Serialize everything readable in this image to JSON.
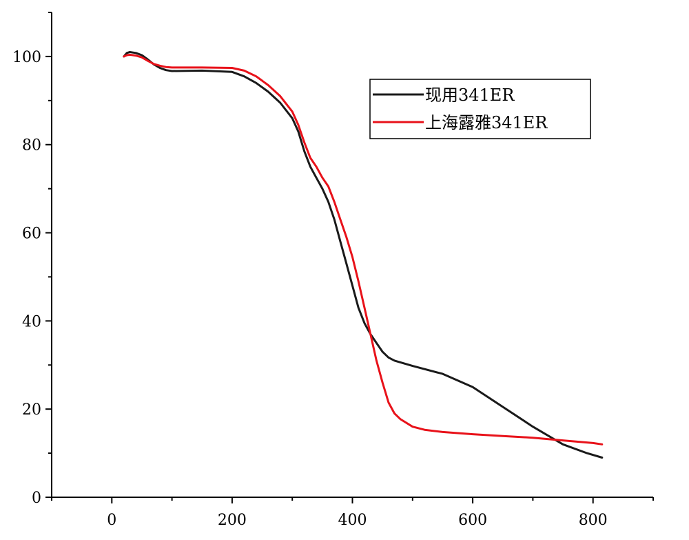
{
  "chart_data": {
    "type": "line",
    "title": "",
    "xlabel": "",
    "ylabel": "",
    "xlim": [
      -100,
      900
    ],
    "ylim": [
      0,
      110
    ],
    "x_ticks": [
      0,
      200,
      400,
      600,
      800
    ],
    "x_tick_labels": [
      "0",
      "200",
      "400",
      "600",
      "800"
    ],
    "y_ticks": [
      0,
      20,
      40,
      60,
      80,
      100
    ],
    "y_tick_labels": [
      "0",
      "20",
      "40",
      "60",
      "80",
      "100"
    ],
    "grid": false,
    "legend_position": "top-right",
    "series": [
      {
        "name": "现用341ER",
        "color": "#1a1a1a",
        "points": [
          [
            20,
            100
          ],
          [
            25,
            100.8
          ],
          [
            30,
            101
          ],
          [
            40,
            100.8
          ],
          [
            50,
            100.3
          ],
          [
            60,
            99.3
          ],
          [
            70,
            98.2
          ],
          [
            80,
            97.4
          ],
          [
            90,
            96.9
          ],
          [
            100,
            96.7
          ],
          [
            150,
            96.8
          ],
          [
            200,
            96.5
          ],
          [
            220,
            95.5
          ],
          [
            240,
            94
          ],
          [
            260,
            92
          ],
          [
            280,
            89.5
          ],
          [
            300,
            86
          ],
          [
            310,
            83
          ],
          [
            320,
            78.5
          ],
          [
            330,
            75
          ],
          [
            340,
            72.5
          ],
          [
            350,
            70
          ],
          [
            360,
            67
          ],
          [
            370,
            63
          ],
          [
            380,
            58
          ],
          [
            390,
            53
          ],
          [
            400,
            48
          ],
          [
            410,
            43
          ],
          [
            420,
            39.5
          ],
          [
            430,
            37
          ],
          [
            440,
            35
          ],
          [
            450,
            33
          ],
          [
            460,
            31.7
          ],
          [
            470,
            31
          ],
          [
            500,
            29.8
          ],
          [
            550,
            28
          ],
          [
            600,
            25
          ],
          [
            650,
            20.5
          ],
          [
            700,
            16
          ],
          [
            750,
            12
          ],
          [
            790,
            10
          ],
          [
            815,
            9
          ]
        ]
      },
      {
        "name": "上海露雅341ER",
        "color": "#e8121a",
        "points": [
          [
            20,
            100
          ],
          [
            25,
            100.3
          ],
          [
            30,
            100.4
          ],
          [
            40,
            100.2
          ],
          [
            50,
            99.8
          ],
          [
            60,
            99
          ],
          [
            70,
            98.3
          ],
          [
            80,
            97.9
          ],
          [
            90,
            97.6
          ],
          [
            100,
            97.5
          ],
          [
            150,
            97.5
          ],
          [
            200,
            97.4
          ],
          [
            220,
            96.8
          ],
          [
            240,
            95.5
          ],
          [
            260,
            93.5
          ],
          [
            280,
            91
          ],
          [
            300,
            87.5
          ],
          [
            310,
            84.5
          ],
          [
            320,
            80.5
          ],
          [
            330,
            77
          ],
          [
            340,
            75
          ],
          [
            350,
            72.5
          ],
          [
            360,
            70.5
          ],
          [
            370,
            67
          ],
          [
            380,
            63
          ],
          [
            390,
            59
          ],
          [
            400,
            54.5
          ],
          [
            410,
            49
          ],
          [
            420,
            43
          ],
          [
            430,
            37
          ],
          [
            440,
            31
          ],
          [
            450,
            26
          ],
          [
            460,
            21.5
          ],
          [
            470,
            19
          ],
          [
            480,
            17.7
          ],
          [
            500,
            16
          ],
          [
            520,
            15.3
          ],
          [
            550,
            14.8
          ],
          [
            600,
            14.3
          ],
          [
            650,
            13.9
          ],
          [
            700,
            13.5
          ],
          [
            750,
            12.9
          ],
          [
            800,
            12.3
          ],
          [
            815,
            12
          ]
        ]
      }
    ]
  }
}
